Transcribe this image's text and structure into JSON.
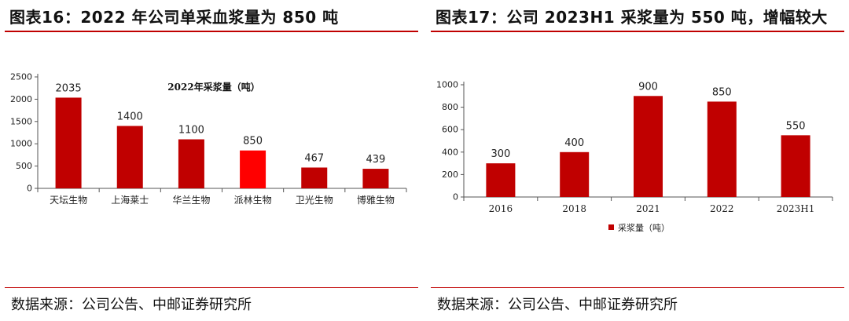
{
  "left": {
    "figure_title": "图表16：2022 年公司单采血浆量为 850 吨",
    "source": "数据来源：公司公告、中邮证券研究所"
  },
  "right": {
    "figure_title": "图表17：公司 2023H1 采浆量为 550 吨，增幅较大",
    "source": "数据来源：公司公告、中邮证券研究所"
  },
  "colors": {
    "accent_rule": "#c00000",
    "bar": "#c00000",
    "bar_highlight": "#ff0000"
  },
  "chart_data": [
    {
      "type": "bar",
      "title": "2022年采浆量（吨）",
      "categories": [
        "天坛生物",
        "上海莱士",
        "华兰生物",
        "派林生物",
        "卫光生物",
        "博雅生物"
      ],
      "values": [
        2035,
        1400,
        1100,
        850,
        467,
        439
      ],
      "highlight_index": 3,
      "data_labels": true,
      "ylim": [
        0,
        2500
      ],
      "yticks": [
        0,
        500,
        1000,
        1500,
        2000,
        2500
      ],
      "xlabel": "",
      "ylabel": "",
      "grid": false,
      "legend": "none"
    },
    {
      "type": "bar",
      "title": "",
      "categories": [
        "2016",
        "2018",
        "2021",
        "2022",
        "2023H1"
      ],
      "series": [
        {
          "name": "采浆量（吨）",
          "values": [
            300,
            400,
            900,
            850,
            550
          ]
        }
      ],
      "data_labels": true,
      "ylim": [
        0,
        1000
      ],
      "yticks": [
        0,
        200,
        400,
        600,
        800,
        1000
      ],
      "xlabel": "",
      "ylabel": "",
      "grid": false,
      "legend": "bottom"
    }
  ]
}
